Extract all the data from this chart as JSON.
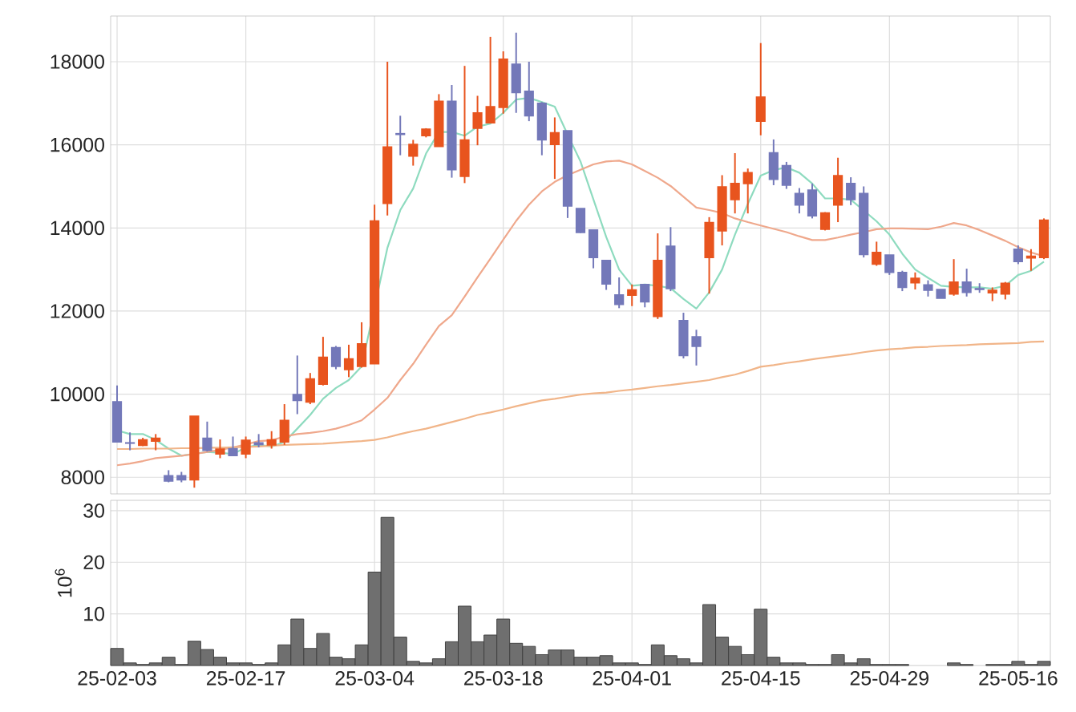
{
  "chart_data": [
    {
      "type": "candlestick",
      "categories": [
        null,
        null,
        null,
        null,
        null,
        null,
        null,
        null,
        null,
        null,
        null,
        null,
        null,
        null,
        null,
        null,
        null,
        null,
        null,
        null,
        null,
        null,
        null,
        null,
        null,
        null,
        null,
        null,
        null,
        null,
        null,
        null,
        null,
        null,
        null,
        null,
        null,
        null,
        null,
        null,
        null,
        null,
        null,
        null,
        null,
        null,
        null,
        null,
        null,
        null,
        null,
        null,
        null,
        null,
        null,
        null,
        null,
        null,
        null,
        null,
        null,
        null,
        null,
        null,
        null,
        null,
        null,
        null,
        null,
        null,
        null,
        null,
        null
      ],
      "ohlc": [
        [
          9820,
          10210,
          8840,
          8850
        ],
        [
          8830,
          9080,
          8650,
          8820
        ],
        [
          8770,
          8950,
          8750,
          8900
        ],
        [
          8870,
          9040,
          8650,
          8940
        ],
        [
          8040,
          8170,
          7880,
          7910
        ],
        [
          8040,
          8130,
          7880,
          7940
        ],
        [
          7940,
          9470,
          7750,
          9470
        ],
        [
          8940,
          9340,
          8620,
          8650
        ],
        [
          8560,
          8910,
          8460,
          8680
        ],
        [
          8690,
          8980,
          8520,
          8520
        ],
        [
          8560,
          8980,
          8460,
          8890
        ],
        [
          8830,
          9040,
          8720,
          8790
        ],
        [
          8780,
          9110,
          8690,
          8900
        ],
        [
          8850,
          9760,
          8780,
          9370
        ],
        [
          9990,
          10930,
          9520,
          9850
        ],
        [
          9810,
          10510,
          9760,
          10370
        ],
        [
          10240,
          11380,
          10210,
          10890
        ],
        [
          11120,
          11160,
          10600,
          10670
        ],
        [
          10590,
          11190,
          10410,
          10850
        ],
        [
          10670,
          11730,
          10640,
          11210
        ],
        [
          10730,
          14560,
          10730,
          14170
        ],
        [
          14590,
          18000,
          14300,
          15950
        ],
        [
          16270,
          16700,
          15750,
          16250
        ],
        [
          15730,
          16120,
          15500,
          16010
        ],
        [
          16220,
          16400,
          16180,
          16380
        ],
        [
          15960,
          17220,
          15960,
          17050
        ],
        [
          17050,
          17440,
          15210,
          15400
        ],
        [
          15240,
          17900,
          15080,
          16120
        ],
        [
          16400,
          17180,
          15990,
          16770
        ],
        [
          16530,
          18600,
          16530,
          16920
        ],
        [
          16900,
          18250,
          16750,
          18060
        ],
        [
          17940,
          18700,
          16770,
          17260
        ],
        [
          17290,
          18000,
          16570,
          16700
        ],
        [
          17000,
          17030,
          15750,
          16120
        ],
        [
          16010,
          16660,
          15180,
          16290
        ],
        [
          16340,
          16340,
          14240,
          14530
        ],
        [
          14470,
          14470,
          13880,
          13890
        ],
        [
          13950,
          13950,
          13030,
          13290
        ],
        [
          13220,
          13220,
          12510,
          12650
        ],
        [
          12390,
          12810,
          12070,
          12160
        ],
        [
          12380,
          12640,
          12120,
          12510
        ],
        [
          12640,
          12640,
          12090,
          12220
        ],
        [
          11870,
          13870,
          11810,
          13220
        ],
        [
          13560,
          14020,
          12480,
          12540
        ],
        [
          11770,
          11960,
          10860,
          10930
        ],
        [
          11380,
          11550,
          10690,
          11150
        ],
        [
          13290,
          14260,
          12420,
          14130
        ],
        [
          13930,
          15270,
          13580,
          14990
        ],
        [
          14680,
          15800,
          14350,
          15070
        ],
        [
          15070,
          15430,
          14350,
          15330
        ],
        [
          16570,
          18450,
          16230,
          17150
        ],
        [
          15810,
          16130,
          15030,
          15170
        ],
        [
          15500,
          15590,
          14940,
          15030
        ],
        [
          14830,
          14960,
          14350,
          14550
        ],
        [
          14910,
          15070,
          14230,
          14290
        ],
        [
          13970,
          14380,
          13940,
          14360
        ],
        [
          14550,
          15690,
          14140,
          15260
        ],
        [
          15070,
          15220,
          14550,
          14680
        ],
        [
          14830,
          15000,
          13290,
          13360
        ],
        [
          13130,
          13670,
          13090,
          13410
        ],
        [
          13350,
          13350,
          12870,
          12930
        ],
        [
          12930,
          12970,
          12480,
          12570
        ],
        [
          12680,
          12930,
          12520,
          12790
        ],
        [
          12630,
          12740,
          12350,
          12500
        ],
        [
          12520,
          12520,
          12310,
          12310
        ],
        [
          12410,
          13250,
          12370,
          12700
        ],
        [
          12700,
          13020,
          12350,
          12450
        ],
        [
          12540,
          12670,
          12440,
          12520
        ],
        [
          12440,
          12570,
          12240,
          12500
        ],
        [
          12410,
          12700,
          12280,
          12670
        ],
        [
          13490,
          13580,
          13130,
          13190
        ],
        [
          13280,
          13490,
          12970,
          13320
        ],
        [
          13290,
          14230,
          13250,
          14190
        ]
      ],
      "colors": [
        "#7378b9",
        "#7378b9",
        "#e8541e",
        "#e8541e",
        "#7378b9",
        "#7378b9",
        "#e8541e",
        "#7378b9",
        "#e8541e",
        "#7378b9",
        "#e8541e",
        "#7378b9",
        "#e8541e",
        "#e8541e",
        "#7378b9",
        "#e8541e",
        "#e8541e",
        "#7378b9",
        "#e8541e",
        "#e8541e",
        "#e8541e",
        "#e8541e",
        "#7378b9",
        "#e8541e",
        "#e8541e",
        "#e8541e",
        "#7378b9",
        "#e8541e",
        "#e8541e",
        "#e8541e",
        "#e8541e",
        "#7378b9",
        "#7378b9",
        "#7378b9",
        "#e8541e",
        "#7378b9",
        "#7378b9",
        "#7378b9",
        "#7378b9",
        "#7378b9",
        "#e8541e",
        "#7378b9",
        "#e8541e",
        "#7378b9",
        "#7378b9",
        "#7378b9",
        "#e8541e",
        "#e8541e",
        "#e8541e",
        "#e8541e",
        "#e8541e",
        "#7378b9",
        "#7378b9",
        "#7378b9",
        "#7378b9",
        "#e8541e",
        "#e8541e",
        "#7378b9",
        "#7378b9",
        "#e8541e",
        "#7378b9",
        "#7378b9",
        "#e8541e",
        "#7378b9",
        "#7378b9",
        "#e8541e",
        "#7378b9",
        "#7378b9",
        "#e8541e",
        "#e8541e",
        "#7378b9",
        "#e8541e",
        "#e8541e"
      ],
      "series": [
        {
          "type": "line",
          "color": "#8edbbf",
          "values": [
            9130,
            9040,
            9040,
            8900,
            8690,
            8520,
            null,
            8610,
            8590,
            8560,
            8720,
            8780,
            8740,
            8850,
            9170,
            9500,
            9890,
            10150,
            10340,
            10670,
            null,
            13520,
            14430,
            14950,
            15790,
            16310,
            16310,
            16220,
            16440,
            16510,
            16770,
            17090,
            17130,
            17030,
            16920,
            16250,
            15600,
            14690,
            13780,
            13000,
            12610,
            12640,
            12610,
            12550,
            12290,
            12060,
            12450,
            13000,
            13840,
            14580,
            15260,
            15390,
            15460,
            15330,
            15070,
            14710,
            14710,
            14680,
            14420,
            14160,
            13840,
            13380,
            13000,
            12800,
            12610,
            12580,
            12570,
            12570,
            12540,
            12610,
            12870,
            12970,
            13190
          ]
        },
        {
          "type": "line",
          "color": "#efa88c",
          "values": [
            8290,
            8330,
            8390,
            8460,
            8490,
            8520,
            8560,
            8610,
            8660,
            8720,
            8790,
            8870,
            8890,
            8980,
            9040,
            9070,
            9110,
            9170,
            9260,
            9370,
            9630,
            9910,
            10340,
            10730,
            11190,
            11640,
            11900,
            12350,
            12810,
            13260,
            13720,
            14170,
            14560,
            14880,
            15110,
            15270,
            15400,
            15530,
            15600,
            15620,
            15530,
            15370,
            15210,
            15010,
            14750,
            14490,
            14430,
            14360,
            14230,
            14140,
            14060,
            13980,
            13900,
            13800,
            13710,
            13710,
            13770,
            13840,
            13900,
            13970,
            13990,
            13990,
            13980,
            13970,
            14030,
            14120,
            14060,
            13950,
            13820,
            13690,
            13540,
            13410,
            13320
          ]
        },
        {
          "type": "line",
          "color": "#f1b589",
          "values": [
            8680,
            8680,
            8690,
            8690,
            8690,
            8700,
            8700,
            8710,
            8710,
            8720,
            8730,
            8740,
            8760,
            8780,
            8790,
            8800,
            8810,
            8830,
            8850,
            8870,
            8900,
            8960,
            9040,
            9110,
            9170,
            9250,
            9330,
            9410,
            9500,
            9560,
            9630,
            9710,
            9780,
            9850,
            9890,
            9940,
            9990,
            10020,
            10040,
            10080,
            10110,
            10150,
            10190,
            10220,
            10260,
            10300,
            10340,
            10410,
            10470,
            10560,
            10660,
            10700,
            10750,
            10790,
            10840,
            10880,
            10920,
            10960,
            11010,
            11050,
            11080,
            11100,
            11130,
            11140,
            11160,
            11170,
            11180,
            11200,
            11210,
            11220,
            11230,
            11260,
            11270
          ]
        }
      ],
      "ylim": [
        7600,
        19100
      ],
      "yticks": [
        8000,
        10000,
        12000,
        14000,
        16000,
        18000
      ],
      "grid": true,
      "tick_labels": "y"
    },
    {
      "type": "bar",
      "categories": [
        "25-02-03",
        null,
        null,
        null,
        null,
        null,
        null,
        null,
        null,
        null,
        "25-02-17",
        null,
        null,
        null,
        null,
        null,
        null,
        null,
        null,
        null,
        "25-03-04",
        null,
        null,
        null,
        null,
        null,
        null,
        null,
        null,
        null,
        "25-03-18",
        null,
        null,
        null,
        null,
        null,
        null,
        null,
        null,
        null,
        "25-04-01",
        null,
        null,
        null,
        null,
        null,
        null,
        null,
        null,
        null,
        "25-04-15",
        null,
        null,
        null,
        null,
        null,
        null,
        null,
        null,
        null,
        "25-04-29",
        null,
        null,
        null,
        null,
        null,
        null,
        null,
        null,
        null,
        "25-05-16",
        null,
        null
      ],
      "values": [
        3.3,
        0.5,
        0.2,
        0.5,
        1.6,
        0.2,
        4.7,
        3.1,
        1.6,
        0.5,
        0.5,
        0.2,
        0.5,
        4.0,
        9.0,
        3.3,
        6.2,
        1.6,
        1.3,
        4.0,
        18.1,
        28.7,
        5.5,
        0.8,
        0.5,
        1.3,
        4.6,
        11.5,
        4.6,
        5.9,
        9.0,
        4.3,
        3.7,
        2.1,
        3.0,
        3.0,
        1.6,
        1.6,
        1.9,
        0.5,
        0.5,
        0.2,
        4.0,
        1.9,
        1.3,
        0.5,
        11.8,
        5.5,
        3.7,
        2.1,
        10.9,
        1.6,
        0.5,
        0.5,
        0.2,
        0.2,
        2.1,
        0.5,
        1.3,
        0.2,
        0.2,
        0.2,
        null,
        null,
        null,
        0.5,
        0.2,
        null,
        0.2,
        0.2,
        0.8,
        0.2,
        0.8
      ],
      "color": "#6f6f6f",
      "ylabel": "10$^{6}$",
      "ylim": [
        0,
        32
      ],
      "yticks": [
        10,
        20,
        30
      ],
      "grid": true
    }
  ]
}
